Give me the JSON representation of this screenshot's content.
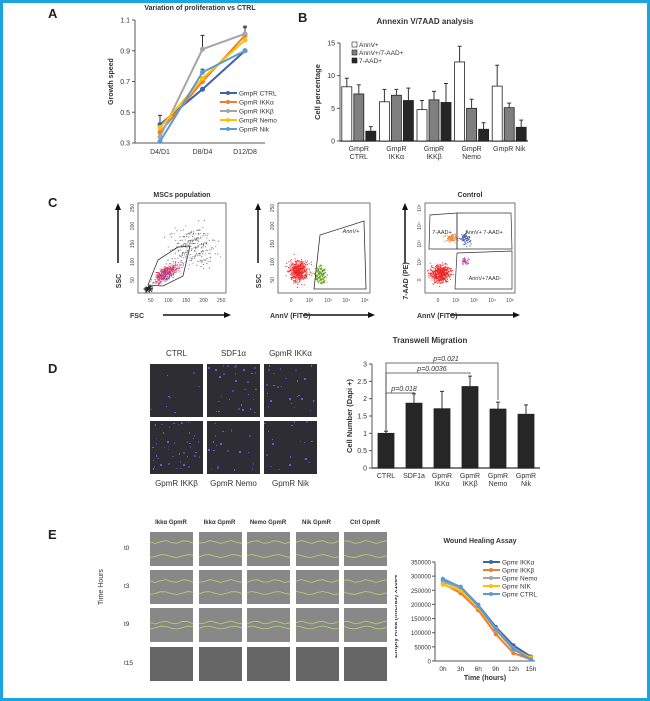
{
  "frame_color": "#1ba5e0",
  "panels": {
    "A": {
      "letter": "A"
    },
    "B": {
      "letter": "B"
    },
    "C": {
      "letter": "C"
    },
    "D": {
      "letter": "D"
    },
    "E": {
      "letter": "E"
    }
  },
  "chart_data": [
    {
      "id": "A",
      "type": "line",
      "title": "Variation of proliferation vs CTRL",
      "xlabel": "",
      "ylabel": "Growth speed",
      "categories": [
        "D4/D1",
        "D8/D4",
        "D12/D8"
      ],
      "ylim": [
        0.3,
        1.1
      ],
      "yticks": [
        "0.3",
        "0.5",
        "0.7",
        "0.9",
        "1.1"
      ],
      "legend_position": "right",
      "series": [
        {
          "name": "GmpR CTRL",
          "color": "#3e64a8",
          "values": [
            0.42,
            0.65,
            0.9
          ],
          "errors": [
            0.06,
            0.0,
            0.0
          ]
        },
        {
          "name": "GpmR IKKα",
          "color": "#ed7d31",
          "values": [
            0.37,
            0.7,
            1.0
          ],
          "errors": [
            0.0,
            0.0,
            0.05
          ]
        },
        {
          "name": "GpmR IKKβ",
          "color": "#a5a5a5",
          "values": [
            0.34,
            0.91,
            1.01
          ],
          "errors": [
            0.0,
            0.09,
            0.05
          ]
        },
        {
          "name": "GmpR Nemo",
          "color": "#ffc000",
          "values": [
            0.4,
            0.72,
            0.97
          ],
          "errors": [
            0.0,
            0.0,
            0.0
          ]
        },
        {
          "name": "GpmR Nik",
          "color": "#5b9bd5",
          "values": [
            0.31,
            0.76,
            0.9
          ],
          "errors": [
            0.0,
            0.02,
            0.0
          ]
        }
      ]
    },
    {
      "id": "B",
      "type": "bar",
      "title": "Annexin V/7AAD analysis",
      "xlabel": "",
      "ylabel": "Cell percentage",
      "categories": [
        "GmpR\nCTRL",
        "GmpR\nIKKα",
        "GmpR\nIKKβ",
        "GmpR\nNemo",
        "GmpR Nik"
      ],
      "ylim": [
        0,
        15
      ],
      "yticks": [
        "0",
        "5",
        "10",
        "15"
      ],
      "legend_position": "top-left",
      "series": [
        {
          "name": "AnnV+",
          "color": "#ffffff",
          "values": [
            8.3,
            6.0,
            4.8,
            12.1,
            8.4
          ],
          "errors": [
            1.3,
            1.9,
            1.4,
            2.4,
            3.2
          ]
        },
        {
          "name": "AnnV+/7-AAD+",
          "color": "#7f7f7f",
          "values": [
            7.2,
            7.0,
            6.3,
            5.0,
            5.1
          ],
          "errors": [
            1.4,
            0.9,
            1.3,
            1.4,
            0.7
          ]
        },
        {
          "name": "7-AAD+",
          "color": "#262626",
          "values": [
            1.5,
            6.2,
            5.9,
            1.8,
            2.1
          ],
          "errors": [
            0.7,
            1.9,
            2.9,
            1.0,
            1.1
          ]
        }
      ]
    },
    {
      "id": "D",
      "type": "bar",
      "title": "Transwell Migration",
      "xlabel": "",
      "ylabel": "Cell Number (Dapi +)",
      "categories": [
        "CTRL",
        "SDF1a",
        "GpmR\nIKKα",
        "GpmR\nIKKβ",
        "GpmR\nNemo",
        "GpmR\nNik"
      ],
      "ylim": [
        0,
        3
      ],
      "yticks": [
        "0",
        "0.5",
        "1",
        "1.5",
        "2",
        "2.5",
        "3"
      ],
      "values": [
        1.0,
        1.87,
        1.71,
        2.35,
        1.7,
        1.55
      ],
      "errors": [
        0.06,
        0.27,
        0.5,
        0.3,
        0.2,
        0.27
      ],
      "annotations": [
        {
          "text": "p=0.018",
          "from": "CTRL",
          "to": "SDF1a"
        },
        {
          "text": "p=0.0036",
          "from": "CTRL",
          "to": "GpmR\nIKKβ"
        },
        {
          "text": "p=0.021",
          "from": "CTRL",
          "to": "GpmR\nNemo"
        }
      ]
    },
    {
      "id": "E",
      "type": "line",
      "title": "Wound Healing Assay",
      "xlabel": "Time (hours)",
      "ylabel": "Empty Area (micras) x10e4",
      "categories": [
        "0h",
        "3h",
        "6h",
        "9h",
        "12h",
        "15h"
      ],
      "ylim": [
        0,
        350000
      ],
      "yticks": [
        "0",
        "50000",
        "100000",
        "150000",
        "200000",
        "250000",
        "300000",
        "350000"
      ],
      "legend_position": "top-right",
      "series": [
        {
          "name": "Gpmr IKKα",
          "color": "#3e64a8",
          "values": [
            285000,
            262000,
            198000,
            120000,
            55000,
            15000
          ]
        },
        {
          "name": "Gpmr IKKβ",
          "color": "#ed7d31",
          "values": [
            273000,
            240000,
            180000,
            95000,
            28000,
            5000
          ]
        },
        {
          "name": "Gpmr Nemo",
          "color": "#a5a5a5",
          "values": [
            280000,
            258000,
            195000,
            115000,
            45000,
            10000
          ]
        },
        {
          "name": "Gpmr NIK",
          "color": "#ffc000",
          "values": [
            270000,
            250000,
            190000,
            110000,
            40000,
            12000
          ]
        },
        {
          "name": "Gpmr CTRL",
          "color": "#5b9bd5",
          "values": [
            290000,
            262000,
            195000,
            112000,
            42000,
            5000
          ]
        }
      ]
    }
  ],
  "flow": {
    "mscs": {
      "title": "MSCs population",
      "xlabel": "FSC",
      "ylabel": "SSC",
      "xticks": [
        "50",
        "100",
        "150",
        "200",
        "250"
      ],
      "yticks": [
        "50",
        "100",
        "150",
        "200",
        "250"
      ]
    },
    "annv": {
      "xlabel": "AnnV (FITC)",
      "ylabel": "SSC",
      "gate": "AnnV+",
      "xticks": [
        "0",
        "10²",
        "10³",
        "10⁴",
        "10⁵"
      ],
      "yticks": [
        "50",
        "100",
        "150",
        "200",
        "250"
      ]
    },
    "control": {
      "title": "Control",
      "xlabel": "AnnV (FITC)",
      "ylabel": "7-AAD (PE)",
      "gates": [
        "7-AAD+",
        "AnnV+ 7-AAD+",
        "AnnV+7AAD-"
      ],
      "xticks": [
        "0",
        "10²",
        "10³",
        "10⁴",
        "10⁵"
      ],
      "yticks": [
        "0",
        "10²",
        "10³",
        "10⁴",
        "10⁵"
      ]
    }
  },
  "microscopy_D": {
    "top_labels": [
      "CTRL",
      "SDF1α",
      "GpmR IKKα"
    ],
    "bottom_labels": [
      "GpmR IKKβ",
      "GpmR Nemo",
      "GpmR Nik"
    ]
  },
  "wound_grid": {
    "column_labels": [
      "Ikkα GpmR",
      "Ikkα GpmR",
      "Nemo GpmR",
      "Nik GpmR",
      "Ctrl GpmR"
    ],
    "row_labels": [
      "t0",
      "t3",
      "t9",
      "t15"
    ],
    "row_axis_label": "Time Hours"
  }
}
